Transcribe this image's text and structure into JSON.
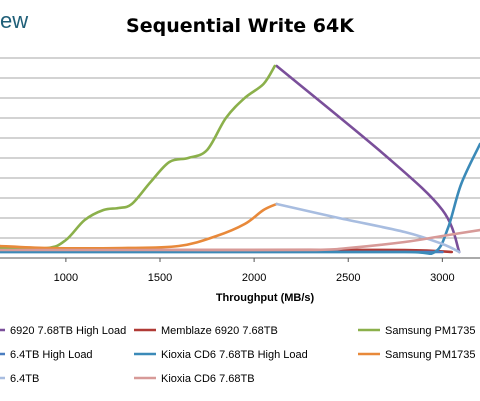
{
  "brand": {
    "text": "ew"
  },
  "chart_data": {
    "type": "line",
    "title": "Sequential Write 64K",
    "xlabel": "Throughput (MB/s)",
    "ylabel": "",
    "xticks": [
      1000,
      1500,
      2000,
      2500,
      3000
    ],
    "xlim": [
      650,
      3200
    ],
    "ylim": [
      0,
      100
    ],
    "grid": true,
    "legend_position": "bottom",
    "series": [
      {
        "name": "6920 7.68TB High Load",
        "color": "#7a4f9a",
        "points": [
          [
            2120,
            96
          ],
          [
            2700,
            51
          ],
          [
            3000,
            24
          ],
          [
            3090,
            3
          ]
        ]
      },
      {
        "name": "Memblaze 6920 7.68TB",
        "color": "#b03a36",
        "points": [
          [
            650,
            4
          ],
          [
            1200,
            4
          ],
          [
            2000,
            4
          ],
          [
            2800,
            4
          ],
          [
            3050,
            3
          ]
        ]
      },
      {
        "name": "Samsung PM1735",
        "color": "#8bb04b",
        "points": [
          [
            650,
            5
          ],
          [
            900,
            5
          ],
          [
            1000,
            9
          ],
          [
            1100,
            19
          ],
          [
            1200,
            24
          ],
          [
            1280,
            25
          ],
          [
            1350,
            27
          ],
          [
            1450,
            38
          ],
          [
            1550,
            48
          ],
          [
            1650,
            50
          ],
          [
            1750,
            54
          ],
          [
            1850,
            70
          ],
          [
            1950,
            80
          ],
          [
            2050,
            87
          ],
          [
            2110,
            96
          ]
        ]
      },
      {
        "name": "6.4TB High Load",
        "color": "#4a7ec0",
        "points": [
          [
            650,
            3
          ],
          [
            1500,
            3
          ],
          [
            2200,
            3
          ],
          [
            2850,
            3
          ],
          [
            3000,
            3
          ]
        ]
      },
      {
        "name": "Kioxia CD6 7.68TB High Load",
        "color": "#3b8ab8",
        "points": [
          [
            650,
            3
          ],
          [
            2000,
            3
          ],
          [
            2800,
            3
          ],
          [
            2960,
            3
          ],
          [
            3030,
            15
          ],
          [
            3100,
            37
          ],
          [
            3200,
            57
          ]
        ]
      },
      {
        "name": "Samsung PM1735",
        "color": "#e8893a",
        "points": [
          [
            650,
            6
          ],
          [
            900,
            5
          ],
          [
            1300,
            5
          ],
          [
            1600,
            6
          ],
          [
            1800,
            11
          ],
          [
            1950,
            17
          ],
          [
            2050,
            24
          ],
          [
            2120,
            27
          ]
        ]
      },
      {
        "name": "6.4TB",
        "color": "#a8bde0",
        "points": [
          [
            2120,
            27
          ],
          [
            2450,
            20
          ],
          [
            2800,
            13
          ],
          [
            3000,
            7
          ],
          [
            3090,
            3
          ]
        ]
      },
      {
        "name": "Kioxia CD6 7.68TB",
        "color": "#d79a98",
        "points": [
          [
            650,
            4
          ],
          [
            1500,
            4
          ],
          [
            2300,
            4
          ],
          [
            2500,
            5
          ],
          [
            2800,
            8
          ],
          [
            3000,
            11
          ],
          [
            3200,
            14
          ]
        ]
      }
    ]
  }
}
